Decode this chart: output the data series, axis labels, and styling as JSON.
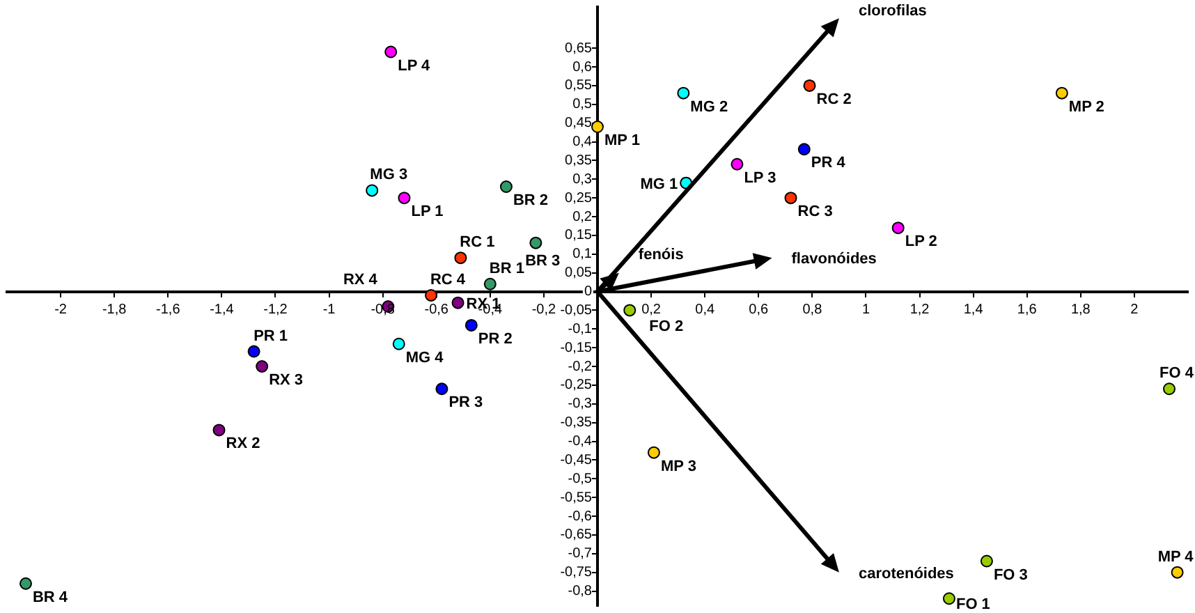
{
  "chart_data": {
    "type": "scatter",
    "marker": "circle",
    "xlim": [
      -2.2,
      2.2
    ],
    "ylim": [
      -0.84,
      0.76
    ],
    "xticks": [
      -2,
      {
        "value": -1.8,
        "label": "-1,8"
      },
      {
        "value": -1.6,
        "label": "-1,6"
      },
      {
        "value": -1.4,
        "label": "-1,4"
      },
      {
        "value": -1.2,
        "label": "-1,2"
      },
      -1,
      {
        "value": -0.8,
        "label": "-0,8"
      },
      {
        "value": -0.6,
        "label": "-0,6"
      },
      {
        "value": -0.4,
        "label": "-0,4"
      },
      {
        "value": -0.2,
        "label": "-0,2"
      },
      {
        "value": 0.2,
        "label": "0,2"
      },
      {
        "value": 0.4,
        "label": "0,4"
      },
      {
        "value": 0.6,
        "label": "0,6"
      },
      {
        "value": 0.8,
        "label": "0,8"
      },
      1,
      {
        "value": 1.2,
        "label": "1,2"
      },
      {
        "value": 1.4,
        "label": "1,4"
      },
      {
        "value": 1.6,
        "label": "1,6"
      },
      {
        "value": 1.8,
        "label": "1,8"
      },
      2
    ],
    "yticks": [
      {
        "value": -0.8,
        "label": "-0,8"
      },
      {
        "value": -0.75,
        "label": "-0,75"
      },
      {
        "value": -0.7,
        "label": "-0,7"
      },
      {
        "value": -0.65,
        "label": "-0,65"
      },
      {
        "value": -0.6,
        "label": "-0,6"
      },
      {
        "value": -0.55,
        "label": "-0,55"
      },
      {
        "value": -0.5,
        "label": "-0,5"
      },
      {
        "value": -0.45,
        "label": "-0,45"
      },
      {
        "value": -0.4,
        "label": "-0,4"
      },
      {
        "value": -0.35,
        "label": "-0,35"
      },
      {
        "value": -0.3,
        "label": "-0,3"
      },
      {
        "value": -0.25,
        "label": "-0,25"
      },
      {
        "value": -0.2,
        "label": "-0,2"
      },
      {
        "value": -0.15,
        "label": "-0,15"
      },
      {
        "value": -0.1,
        "label": "-0,1"
      },
      {
        "value": -0.05,
        "label": "-0,05"
      },
      0,
      {
        "value": 0.05,
        "label": "0,05"
      },
      {
        "value": 0.1,
        "label": "0,1"
      },
      {
        "value": 0.15,
        "label": "0,15"
      },
      {
        "value": 0.2,
        "label": "0,2"
      },
      {
        "value": 0.25,
        "label": "0,25"
      },
      {
        "value": 0.3,
        "label": "0,3"
      },
      {
        "value": 0.35,
        "label": "0,35"
      },
      {
        "value": 0.4,
        "label": "0,4"
      },
      {
        "value": 0.45,
        "label": "0,45"
      },
      {
        "value": 0.5,
        "label": "0,5"
      },
      {
        "value": 0.55,
        "label": "0,55"
      },
      {
        "value": 0.6,
        "label": "0,6"
      },
      {
        "value": 0.65,
        "label": "0,65"
      }
    ],
    "series": [
      {
        "name": "LP 4",
        "color": "#ff00ff",
        "x": [
          -0.77
        ],
        "values": [
          0.64
        ]
      },
      {
        "name": "LP 1",
        "color": "#ff00ff",
        "x": [
          -0.72
        ],
        "values": [
          0.25
        ]
      },
      {
        "name": "LP 3",
        "color": "#ff00ff",
        "x": [
          0.52
        ],
        "values": [
          0.34
        ]
      },
      {
        "name": "LP 2",
        "color": "#ff00ff",
        "x": [
          1.12
        ],
        "values": [
          0.17
        ]
      },
      {
        "name": "MG 3",
        "color": "#00ffff",
        "x": [
          -0.84
        ],
        "values": [
          0.27
        ]
      },
      {
        "name": "MG 2",
        "color": "#00ffff",
        "x": [
          0.32
        ],
        "values": [
          0.53
        ]
      },
      {
        "name": "MG 1",
        "color": "#00ffff",
        "x": [
          0.33
        ],
        "values": [
          0.29
        ]
      },
      {
        "name": "MG 4",
        "color": "#00ffff",
        "x": [
          -0.74
        ],
        "values": [
          -0.14
        ]
      },
      {
        "name": "BR 2",
        "color": "#339966",
        "x": [
          -0.34
        ],
        "values": [
          0.28
        ]
      },
      {
        "name": "BR 3",
        "color": "#339966",
        "x": [
          -0.23
        ],
        "values": [
          0.13
        ]
      },
      {
        "name": "BR 1",
        "color": "#339966",
        "x": [
          -0.4
        ],
        "values": [
          0.02
        ]
      },
      {
        "name": "BR 4",
        "color": "#339966",
        "x": [
          -2.13
        ],
        "values": [
          -0.78
        ]
      },
      {
        "name": "RC 1",
        "color": "#ff3300",
        "x": [
          -0.51
        ],
        "values": [
          0.09
        ]
      },
      {
        "name": "RC 2",
        "color": "#ff3300",
        "x": [
          0.79
        ],
        "values": [
          0.55
        ]
      },
      {
        "name": "RC 3",
        "color": "#ff3300",
        "x": [
          0.72
        ],
        "values": [
          0.25
        ]
      },
      {
        "name": "RC 4",
        "color": "#ff3300",
        "x": [
          -0.62
        ],
        "values": [
          -0.01
        ]
      },
      {
        "name": "RX 4",
        "color": "#800080",
        "x": [
          -0.78
        ],
        "values": [
          -0.04
        ]
      },
      {
        "name": "RX 1",
        "color": "#800080",
        "x": [
          -0.52
        ],
        "values": [
          -0.03
        ]
      },
      {
        "name": "RX 3",
        "color": "#800080",
        "x": [
          -1.25
        ],
        "values": [
          -0.2
        ]
      },
      {
        "name": "RX 2",
        "color": "#800080",
        "x": [
          -1.41
        ],
        "values": [
          -0.37
        ]
      },
      {
        "name": "PR 2",
        "color": "#0000ff",
        "x": [
          -0.47
        ],
        "values": [
          -0.09
        ]
      },
      {
        "name": "PR 3",
        "color": "#0000ff",
        "x": [
          -0.58
        ],
        "values": [
          -0.26
        ]
      },
      {
        "name": "PR 1",
        "color": "#0000ff",
        "x": [
          -1.28
        ],
        "values": [
          -0.16
        ]
      },
      {
        "name": "PR 4",
        "color": "#0000ff",
        "x": [
          0.77
        ],
        "values": [
          0.38
        ]
      },
      {
        "name": "MP 1",
        "color": "#ffcc00",
        "x": [
          0
        ],
        "values": [
          0.44
        ]
      },
      {
        "name": "MP 2",
        "color": "#ffcc00",
        "x": [
          1.73
        ],
        "values": [
          0.53
        ]
      },
      {
        "name": "MP 3",
        "color": "#ffcc00",
        "x": [
          0.21
        ],
        "values": [
          -0.43
        ]
      },
      {
        "name": "MP 4",
        "color": "#ffcc00",
        "x": [
          2.16
        ],
        "values": [
          -0.75
        ]
      },
      {
        "name": "FO 2",
        "color": "#99cc00",
        "x": [
          0.12
        ],
        "values": [
          -0.05
        ]
      },
      {
        "name": "FO 4",
        "color": "#99cc00",
        "x": [
          2.13
        ],
        "values": [
          -0.26
        ]
      },
      {
        "name": "FO 3",
        "color": "#99cc00",
        "x": [
          1.45
        ],
        "values": [
          -0.72
        ]
      },
      {
        "name": "FO 1",
        "color": "#99cc00",
        "x": [
          1.31
        ],
        "values": [
          -0.82
        ]
      }
    ],
    "annotations": [
      "clorofilas",
      "carotenóides",
      "flavonóides",
      "fenóis"
    ]
  }
}
